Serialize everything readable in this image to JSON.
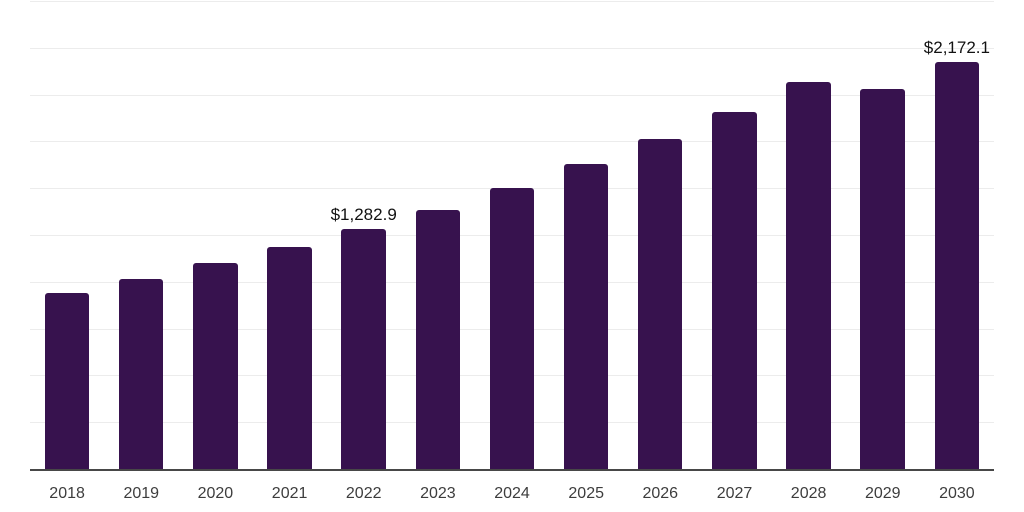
{
  "chart_data": {
    "type": "bar",
    "title": "",
    "xlabel": "",
    "ylabel": "",
    "categories": [
      "2018",
      "2019",
      "2020",
      "2021",
      "2022",
      "2023",
      "2024",
      "2025",
      "2026",
      "2027",
      "2028",
      "2029",
      "2030"
    ],
    "values": [
      940,
      1014,
      1100,
      1187,
      1282.9,
      1382,
      1500,
      1627,
      1764,
      1905,
      2070,
      2032,
      2172.1
    ],
    "data_labels": {
      "2022": "$1,282.9",
      "2030": "$2,172.1"
    },
    "ylim": [
      0,
      2500
    ],
    "gridline_step": 250,
    "grid": true,
    "legend": false,
    "legend_position": "none",
    "y_axis_labels_visible": false
  },
  "colors": {
    "bar": "#37124E",
    "gridline": "#ececec",
    "axis_line": "#474747",
    "tick_text": "#3d3d3d",
    "value_label_text": "#121212",
    "background": "#ffffff"
  }
}
